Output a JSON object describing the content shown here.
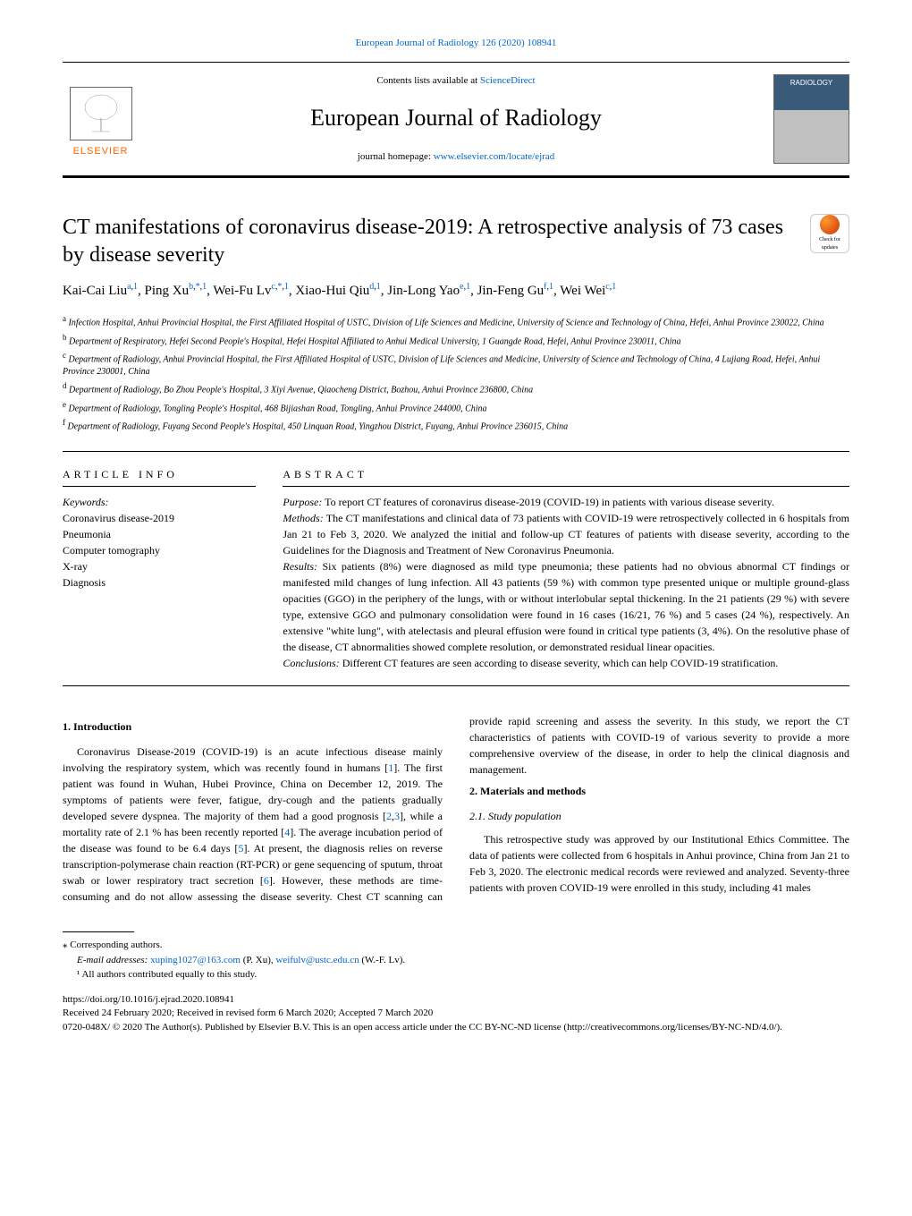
{
  "citation": "European Journal of Radiology 126 (2020) 108941",
  "contents_prefix": "Contents lists available at ",
  "contents_link": "ScienceDirect",
  "journal_name": "European Journal of Radiology",
  "homepage_prefix": "journal homepage: ",
  "homepage_link": "www.elsevier.com/locate/ejrad",
  "elsevier_label": "ELSEVIER",
  "cover_label": "RADIOLOGY",
  "article_title": "CT manifestations of coronavirus disease-2019: A retrospective analysis of 73 cases by disease severity",
  "check_updates": "Check for updates",
  "authors_html": "Kai-Cai Liu<sup><a>a</a>,<a>1</a></sup>, Ping Xu<sup><a>b</a>,<a>*</a>,<a>1</a></sup>, Wei-Fu Lv<sup><a>c</a>,<a>*</a>,<a>1</a></sup>, Xiao-Hui Qiu<sup><a>d</a>,<a>1</a></sup>, Jin-Long Yao<sup><a>e</a>,<a>1</a></sup>, Jin-Feng Gu<sup><a>f</a>,<a>1</a></sup>, Wei Wei<sup><a>c</a>,<a>1</a></sup>",
  "affiliations": [
    "<sup>a</sup> Infection Hospital, Anhui Provincial Hospital, the First Affiliated Hospital of USTC, Division of Life Sciences and Medicine, University of Science and Technology of China, Hefei, Anhui Province 230022, China",
    "<sup>b</sup> Department of Respiratory, Hefei Second People's Hospital, Hefei Hospital Affiliated to Anhui Medical University, 1 Guangde Road, Hefei, Anhui Province 230011, China",
    "<sup>c</sup> Department of Radiology, Anhui Provincial Hospital, the First Affiliated Hospital of USTC, Division of Life Sciences and Medicine, University of Science and Technology of China, 4 Lujiang Road, Hefei, Anhui Province 230001, China",
    "<sup>d</sup> Department of Radiology, Bo Zhou People's Hospital, 3 Xiyi Avenue, Qiaocheng District, Bozhou, Anhui Province 236800, China",
    "<sup>e</sup> Department of Radiology, Tongling People's Hospital, 468 Bijiashan Road, Tongling, Anhui Province 244000, China",
    "<sup>f</sup> Department of Radiology, Fuyang Second People's Hospital, 450 Linquan Road, Yingzhou District, Fuyang, Anhui Province 236015, China"
  ],
  "article_info_heading": "ARTICLE INFO",
  "keywords_label": "Keywords:",
  "keywords": [
    "Coronavirus disease-2019",
    "Pneumonia",
    "Computer tomography",
    "X-ray",
    "Diagnosis"
  ],
  "abstract_heading": "ABSTRACT",
  "abstract": {
    "purpose": "To report CT features of coronavirus disease-2019 (COVID-19) in patients with various disease severity.",
    "methods": "The CT manifestations and clinical data of 73 patients with COVID-19 were retrospectively collected in 6 hospitals from Jan 21 to Feb 3, 2020. We analyzed the initial and follow-up CT features of patients with disease severity, according to the Guidelines for the Diagnosis and Treatment of New Coronavirus Pneumonia.",
    "results": "Six patients (8%) were diagnosed as mild type pneumonia; these patients had no obvious abnormal CT findings or manifested mild changes of lung infection. All 43 patients (59 %) with common type presented unique or multiple ground-glass opacities (GGO) in the periphery of the lungs, with or without interlobular septal thickening. In the 21 patients (29 %) with severe type, extensive GGO and pulmonary consolidation were found in 16 cases (16/21, 76 %) and 5 cases (24 %), respectively. An extensive \"white lung\", with atelectasis and pleural effusion were found in critical type patients (3, 4%). On the resolutive phase of the disease, CT abnormalities showed complete resolution, or demonstrated residual linear opacities.",
    "conclusions": "Different CT features are seen according to disease severity, which can help COVID-19 stratification."
  },
  "sections": {
    "intro_heading": "1. Introduction",
    "intro_text": "Coronavirus Disease-2019 (COVID-19) is an acute infectious disease mainly involving the respiratory system, which was recently found in humans [<a>1</a>]. The first patient was found in Wuhan, Hubei Province, China on December 12, 2019. The symptoms of patients were fever, fatigue, dry-cough and the patients gradually developed severe dyspnea. The majority of them had a good prognosis [<a>2</a>,<a>3</a>], while a mortality rate of 2.1 % has been recently reported [<a>4</a>]. The average incubation period of the disease was found to be 6.4 days [<a>5</a>]. At present, the diagnosis relies on reverse transcription-polymerase chain reaction (RT-PCR) or gene sequencing of sputum, throat swab or lower respiratory tract secretion [<a>6</a>]. However, these methods are time-consuming and do not allow assessing the disease severity. Chest CT scanning can provide rapid screening and assess the severity. In this study, we report the CT characteristics of patients with COVID-19 of various severity to provide a more comprehensive overview of the disease, in order to help the clinical diagnosis and management.",
    "methods_heading": "2. Materials and methods",
    "study_pop_heading": "2.1. Study population",
    "study_pop_text": "This retrospective study was approved by our Institutional Ethics Committee. The data of patients were collected from 6 hospitals in Anhui province, China from Jan 21 to Feb 3, 2020. The electronic medical records were reviewed and analyzed. Seventy-three patients with proven COVID-19 were enrolled in this study, including 41 males"
  },
  "footer": {
    "corresponding": "⁎ Corresponding authors.",
    "emails_label": "E-mail addresses: ",
    "email1": "xuping1027@163.com",
    "email1_name": " (P. Xu), ",
    "email2": "weifulv@ustc.edu.cn",
    "email2_name": " (W.-F. Lv).",
    "equal_note": "¹ All authors contributed equally to this study.",
    "doi": "https://doi.org/10.1016/j.ejrad.2020.108941",
    "received": "Received 24 February 2020; Received in revised form 6 March 2020; Accepted 7 March 2020",
    "copyright": "0720-048X/ © 2020 The Author(s). Published by Elsevier B.V. This is an open access article under the CC BY-NC-ND license (http://creativecommons.org/licenses/BY-NC-ND/4.0/)."
  },
  "colors": {
    "link": "#0066cc",
    "elsevier": "#ff6600",
    "text": "#000000",
    "background": "#ffffff"
  }
}
